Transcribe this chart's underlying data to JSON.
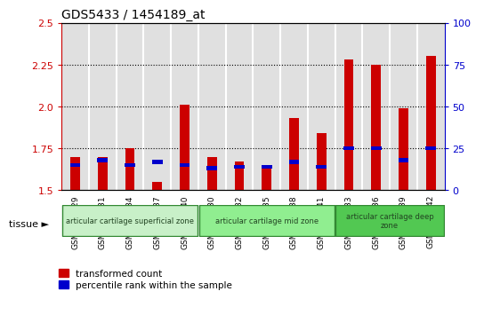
{
  "title": "GDS5433 / 1454189_at",
  "samples": [
    "GSM1256929",
    "GSM1256931",
    "GSM1256934",
    "GSM1256937",
    "GSM1256940",
    "GSM1256930",
    "GSM1256932",
    "GSM1256935",
    "GSM1256938",
    "GSM1256941",
    "GSM1256933",
    "GSM1256936",
    "GSM1256939",
    "GSM1256942"
  ],
  "red_values": [
    1.7,
    1.7,
    1.75,
    1.55,
    2.01,
    1.7,
    1.67,
    1.65,
    1.93,
    1.84,
    2.28,
    2.25,
    1.99,
    2.3
  ],
  "blue_percentiles": [
    15,
    18,
    15,
    17,
    15,
    13,
    14,
    14,
    17,
    14,
    25,
    25,
    18,
    25
  ],
  "ylim": [
    1.5,
    2.5
  ],
  "yticks_left": [
    1.5,
    1.75,
    2.0,
    2.25,
    2.5
  ],
  "yticks_right": [
    0,
    25,
    50,
    75,
    100
  ],
  "dotted_lines": [
    1.75,
    2.0,
    2.25
  ],
  "zones": [
    {
      "label": "articular cartilage superficial zone",
      "start": 0,
      "end": 5,
      "color": "#c8f0c8"
    },
    {
      "label": "articular cartilage mid zone",
      "start": 5,
      "end": 10,
      "color": "#90ee90"
    },
    {
      "label": "articular cartilage deep\nzone",
      "start": 10,
      "end": 14,
      "color": "#52c852"
    }
  ],
  "red_color": "#cc0000",
  "blue_color": "#0000cc",
  "col_bg_even": "#e0e0e0",
  "col_bg_odd": "#e0e0e0",
  "plot_bg": "#ffffff",
  "base": 1.5,
  "bar_width": 0.35,
  "blue_square_size": 2.5,
  "legend_red": "transformed count",
  "legend_blue": "percentile rank within the sample",
  "tissue_label": "tissue ►"
}
